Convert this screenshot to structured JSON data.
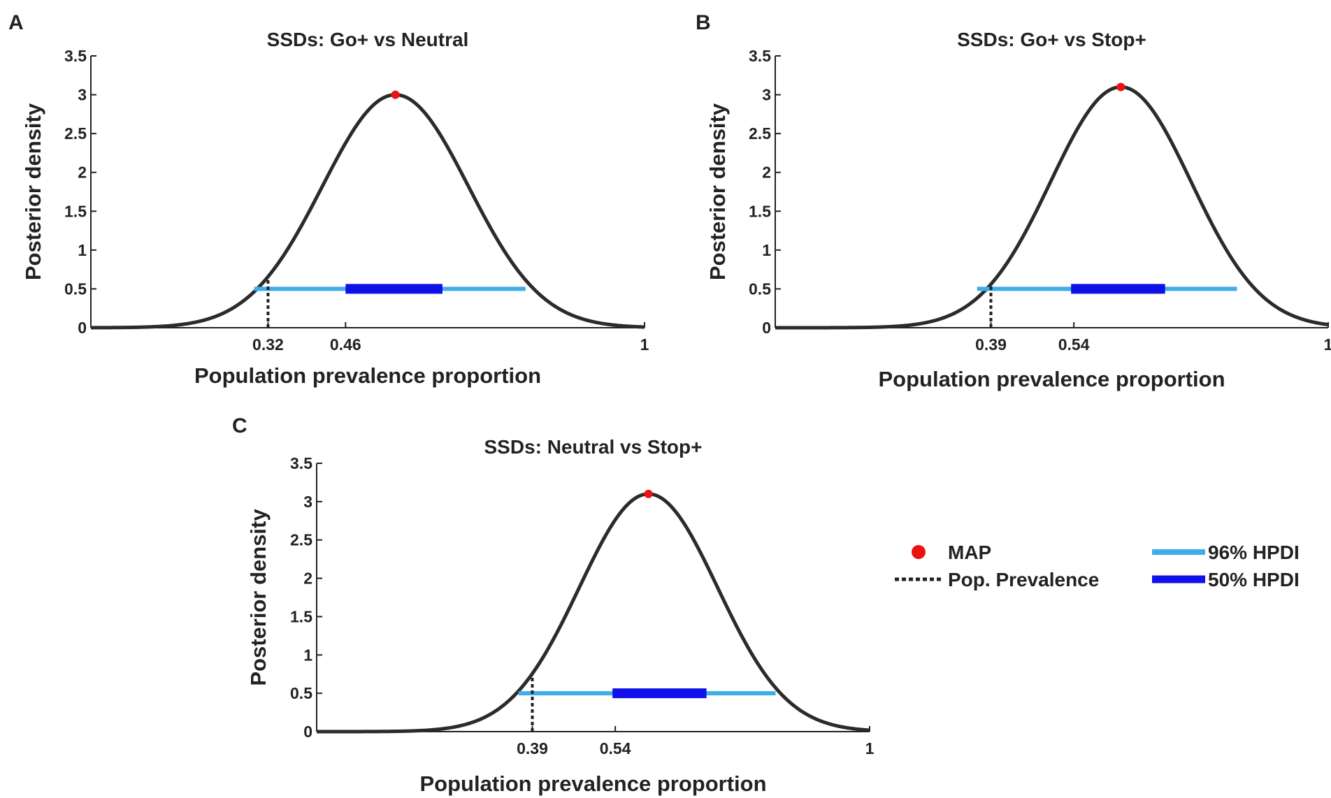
{
  "colors": {
    "curve": "#2b2b2b",
    "map": "#ee1111",
    "hpdi96": "#3daeea",
    "hpdi50": "#1010e8",
    "axis": "#222222",
    "prevalence": "#222222"
  },
  "chart_data": [
    {
      "type": "line",
      "panel": "A",
      "title": "SSDs: Go+ vs Neutral",
      "xlabel": "Population prevalence proportion",
      "ylabel": "Posterior density",
      "xlim": [
        0,
        1
      ],
      "ylim": [
        0,
        3.5
      ],
      "yticks": [
        "0",
        "0.5",
        "1",
        "1.5",
        "2",
        "2.5",
        "3",
        "3.5"
      ],
      "xtick_labels": [
        "0.32",
        "0.46",
        "1"
      ],
      "xtick_values": [
        0.32,
        0.46,
        1
      ],
      "map": {
        "x": 0.55,
        "y": 3.0
      },
      "curve_sigma": 0.132,
      "pop_prevalence": 0.32,
      "hpdi96": [
        0.295,
        0.785
      ],
      "hpdi50": [
        0.46,
        0.635
      ],
      "hpdi_y": 0.5
    },
    {
      "type": "line",
      "panel": "B",
      "title": "SSDs: Go+ vs Stop+",
      "xlabel": "Population prevalence proportion",
      "ylabel": "Posterior density",
      "xlim": [
        0,
        1
      ],
      "ylim": [
        0,
        3.5
      ],
      "yticks": [
        "0",
        "0.5",
        "1",
        "1.5",
        "2",
        "2.5",
        "3",
        "3.5"
      ],
      "xtick_labels": [
        "0.39",
        "0.54",
        "1"
      ],
      "xtick_values": [
        0.39,
        0.54,
        1
      ],
      "map": {
        "x": 0.625,
        "y": 3.1
      },
      "curve_sigma": 0.127,
      "pop_prevalence": 0.39,
      "hpdi96": [
        0.365,
        0.835
      ],
      "hpdi50": [
        0.535,
        0.705
      ],
      "hpdi_y": 0.5
    },
    {
      "type": "line",
      "panel": "C",
      "title": "SSDs: Neutral vs Stop+",
      "xlabel": "Population prevalence proportion",
      "ylabel": "Posterior density",
      "xlim": [
        0,
        1
      ],
      "ylim": [
        0,
        3.5
      ],
      "yticks": [
        "0",
        "0.5",
        "1",
        "1.5",
        "2",
        "2.5",
        "3",
        "3.5"
      ],
      "xtick_labels": [
        "0.39",
        "0.54",
        "1"
      ],
      "xtick_values": [
        0.39,
        0.54,
        1
      ],
      "map": {
        "x": 0.6,
        "y": 3.1
      },
      "curve_sigma": 0.125,
      "pop_prevalence": 0.39,
      "hpdi96": [
        0.365,
        0.83
      ],
      "hpdi50": [
        0.535,
        0.705
      ],
      "hpdi_y": 0.5
    }
  ],
  "legend": {
    "map": "MAP",
    "pop_prevalence": "Pop. Prevalence",
    "hpdi96": "96% HPDI",
    "hpdi50": "50% HPDI"
  }
}
